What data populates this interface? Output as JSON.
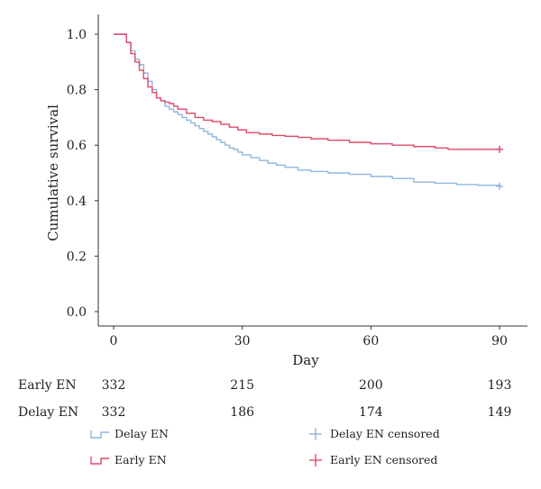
{
  "chart_data": {
    "type": "line",
    "subtype": "kaplan-meier-step",
    "title": "",
    "xlabel": "Day",
    "ylabel": "Cumulative survival",
    "xlim": [
      0,
      90
    ],
    "ylim": [
      0,
      1.0
    ],
    "x_ticks": [
      0,
      30,
      60,
      90
    ],
    "x_tick_labels": [
      "0",
      "30",
      "60",
      "90"
    ],
    "y_ticks": [
      0.0,
      0.2,
      0.4,
      0.6,
      0.8,
      1.0
    ],
    "y_tick_labels": [
      "0.0",
      "0.2",
      "0.4",
      "0.6",
      "0.8",
      "1.0"
    ],
    "grid": false,
    "legend_position": "bottom",
    "colors": {
      "delay": "#8fb6df",
      "early": "#e0496b"
    },
    "series": [
      {
        "name": "Delay EN",
        "color": "#8fb6df",
        "x": [
          0,
          2,
          3,
          4,
          5,
          6,
          7,
          8,
          9,
          10,
          11,
          12,
          13,
          14,
          15,
          16,
          17,
          18,
          19,
          20,
          21,
          22,
          23,
          24,
          25,
          26,
          27,
          28,
          29,
          30,
          32,
          34,
          36,
          38,
          40,
          43,
          46,
          50,
          55,
          60,
          65,
          70,
          75,
          80,
          85,
          90
        ],
        "y": [
          1.0,
          1.0,
          0.97,
          0.94,
          0.91,
          0.89,
          0.86,
          0.83,
          0.8,
          0.77,
          0.76,
          0.74,
          0.73,
          0.72,
          0.71,
          0.7,
          0.69,
          0.68,
          0.67,
          0.66,
          0.65,
          0.64,
          0.63,
          0.62,
          0.61,
          0.6,
          0.59,
          0.585,
          0.575,
          0.565,
          0.555,
          0.545,
          0.535,
          0.528,
          0.52,
          0.51,
          0.505,
          0.5,
          0.495,
          0.487,
          0.48,
          0.467,
          0.463,
          0.458,
          0.455,
          0.452
        ]
      },
      {
        "name": "Early EN",
        "color": "#e0496b",
        "x": [
          0,
          2,
          3,
          4,
          5,
          6,
          7,
          8,
          9,
          10,
          11,
          12,
          13,
          14,
          15,
          17,
          19,
          21,
          23,
          25,
          27,
          29,
          31,
          34,
          37,
          40,
          43,
          46,
          50,
          55,
          60,
          65,
          70,
          75,
          78,
          85,
          90
        ],
        "y": [
          1.0,
          1.0,
          0.97,
          0.93,
          0.9,
          0.87,
          0.84,
          0.81,
          0.79,
          0.77,
          0.76,
          0.755,
          0.75,
          0.74,
          0.73,
          0.715,
          0.7,
          0.69,
          0.685,
          0.675,
          0.665,
          0.655,
          0.645,
          0.64,
          0.635,
          0.632,
          0.628,
          0.623,
          0.618,
          0.61,
          0.605,
          0.6,
          0.595,
          0.59,
          0.585,
          0.585,
          0.585
        ]
      }
    ],
    "censored_markers": [
      {
        "series": "Delay EN",
        "x": 90,
        "y": 0.452
      },
      {
        "series": "Early EN",
        "x": 90,
        "y": 0.585
      }
    ],
    "risk_table": {
      "rows": [
        {
          "label": "Early EN",
          "values": [
            "332",
            "215",
            "200",
            "193"
          ]
        },
        {
          "label": "Delay EN",
          "values": [
            "332",
            "186",
            "174",
            "149"
          ]
        }
      ]
    },
    "legend": [
      {
        "label": "Delay EN",
        "kind": "line",
        "series": "Delay EN"
      },
      {
        "label": "Delay EN censored",
        "kind": "censor",
        "series": "Delay EN"
      },
      {
        "label": "Early EN",
        "kind": "line",
        "series": "Early EN"
      },
      {
        "label": "Early EN censored",
        "kind": "censor",
        "series": "Early EN"
      }
    ]
  }
}
